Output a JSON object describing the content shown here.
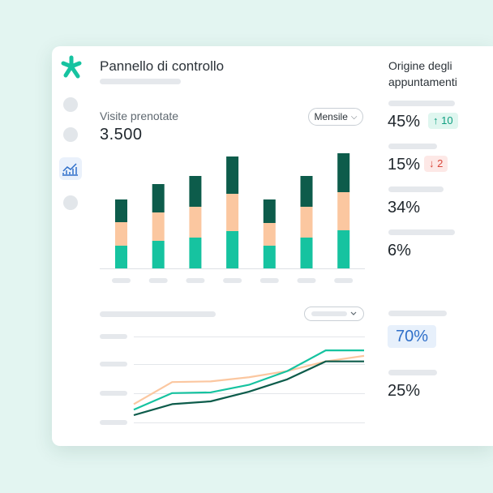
{
  "header": {
    "title": "Pannello di controllo"
  },
  "bar_section": {
    "label": "Visite prenotate",
    "total": "3.500",
    "period_select": "Mensile"
  },
  "chart_data": [
    {
      "type": "bar",
      "stacked": true,
      "values_units": "px-estimated-relative",
      "categories": [
        "",
        "",
        "",
        "",
        "",
        "",
        ""
      ],
      "series": [
        {
          "color": "#16c3a0",
          "values": [
            28,
            34,
            38,
            46,
            28,
            38,
            47
          ]
        },
        {
          "color": "#fbc7a0",
          "values": [
            29,
            35,
            38,
            46,
            28,
            38,
            47
          ]
        },
        {
          "color": "#0d5c4b",
          "values": [
            28,
            35,
            38,
            46,
            29,
            38,
            48
          ]
        }
      ],
      "ylim": [
        0,
        150
      ],
      "grid": false
    },
    {
      "type": "line",
      "x": [
        0,
        1,
        2,
        3,
        4,
        5,
        6
      ],
      "series": [
        {
          "color": "#fbc7a0",
          "values": [
            0.8,
            2.4,
            2.45,
            2.75,
            3.2,
            3.9,
            4.3
          ]
        },
        {
          "color": "#16c3a0",
          "values": [
            0.4,
            1.6,
            1.65,
            2.2,
            3.2,
            4.7,
            4.7
          ]
        },
        {
          "color": "#0d5c4b",
          "values": [
            0.0,
            0.8,
            1.0,
            1.7,
            2.6,
            3.9,
            3.9
          ]
        }
      ],
      "ylim": [
        0,
        5
      ],
      "grid": true
    }
  ],
  "origin": {
    "title": "Origine degli appuntamenti",
    "stats": [
      {
        "value": "45%",
        "badge": "10",
        "trend": "up"
      },
      {
        "value": "15%",
        "badge": "2",
        "trend": "down"
      },
      {
        "value": "34%"
      },
      {
        "value": "6%"
      }
    ],
    "lower_stats": [
      {
        "value": "70%",
        "highlighted": true
      },
      {
        "value": "25%"
      }
    ]
  },
  "colors": {
    "teal": "#16c3a0",
    "peach": "#fbc7a0",
    "dark_green": "#0d5c4b",
    "up": "#0f9e80",
    "down": "#d9473b",
    "highlight": "#2f6fc9"
  },
  "icons": {
    "logo": "doctolib-star-logo",
    "chart_nav": "line-chart-icon",
    "arrow_up": "↑",
    "arrow_down": "↓",
    "chevron": "⌵"
  }
}
